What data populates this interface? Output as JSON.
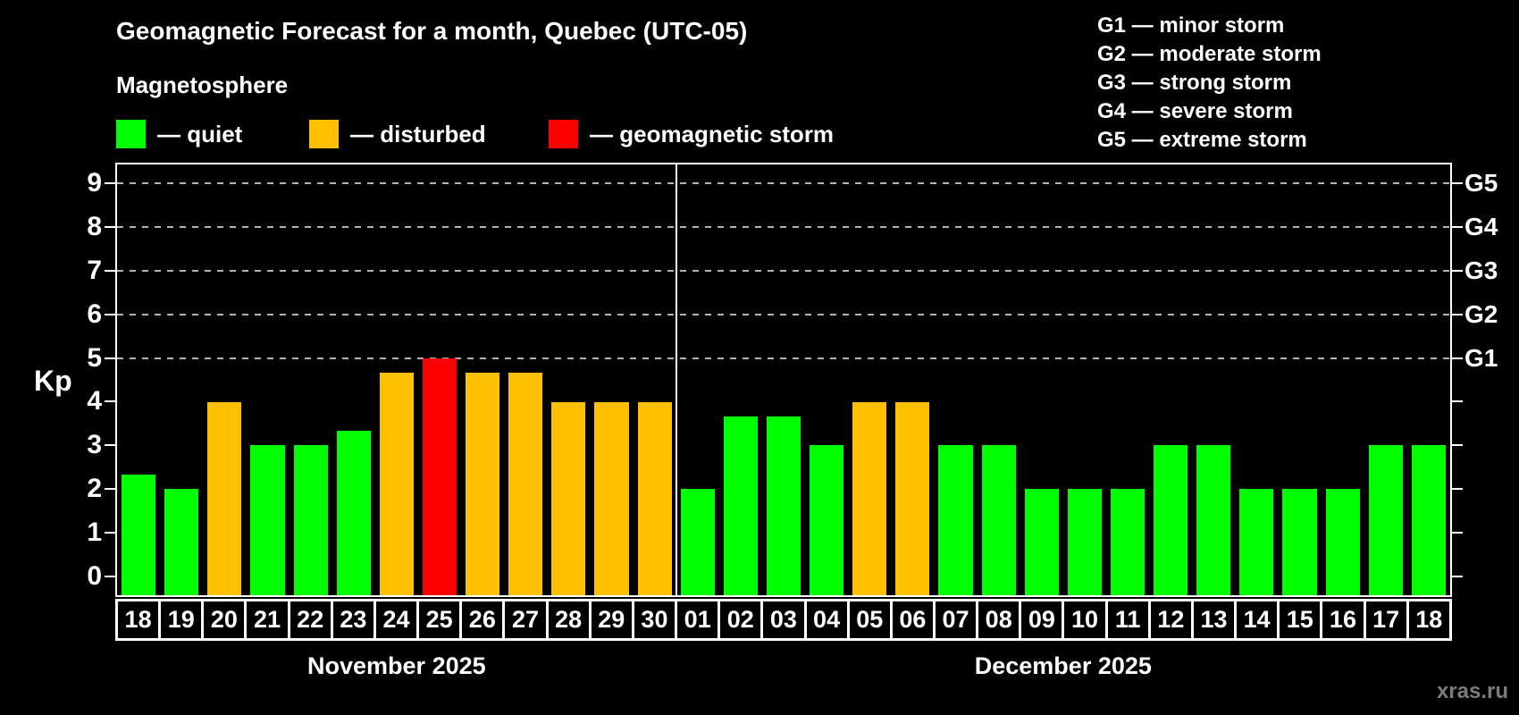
{
  "subtitle": "Magnetosphere",
  "watermark": "xras.ru",
  "legend": [
    {
      "name": "quiet",
      "label": "— quiet",
      "color": "#00ff00",
      "x": 130
    },
    {
      "name": "disturbed",
      "label": "— disturbed",
      "color": "#ffc000",
      "x": 346
    },
    {
      "name": "geomagnetic-storm",
      "label": "— geomagnetic storm",
      "color": "#ff0000",
      "x": 614
    }
  ],
  "g_scale": [
    "G1 — minor storm",
    "G2 — moderate storm",
    "G3 — strong storm",
    "G4 — severe storm",
    "G5 — extreme storm"
  ],
  "chart_data": {
    "type": "bar",
    "title": "Geomagnetic Forecast for a month, Quebec (UTC-05)",
    "ylabel": "Kp",
    "ylim": [
      -0.42,
      9.42
    ],
    "yticks": [
      0,
      1,
      2,
      3,
      4,
      5,
      6,
      7,
      8,
      9
    ],
    "grid_kp": [
      5,
      6,
      7,
      8,
      9
    ],
    "grid_on": true,
    "legend_position": "top-left",
    "right_axis_labels": [
      {
        "kp": 5,
        "text": "G1"
      },
      {
        "kp": 6,
        "text": "G2"
      },
      {
        "kp": 7,
        "text": "G3"
      },
      {
        "kp": 8,
        "text": "G4"
      },
      {
        "kp": 9,
        "text": "G5"
      }
    ],
    "status_colors": {
      "quiet": "#00ff00",
      "disturbed": "#ffc000",
      "storm": "#ff0000"
    },
    "months": [
      {
        "label": "November 2025",
        "days": [
          {
            "date": "18",
            "kp": 2.33,
            "status": "quiet"
          },
          {
            "date": "19",
            "kp": 2.0,
            "status": "quiet"
          },
          {
            "date": "20",
            "kp": 4.0,
            "status": "disturbed"
          },
          {
            "date": "21",
            "kp": 3.0,
            "status": "quiet"
          },
          {
            "date": "22",
            "kp": 3.0,
            "status": "quiet"
          },
          {
            "date": "23",
            "kp": 3.33,
            "status": "quiet"
          },
          {
            "date": "24",
            "kp": 4.67,
            "status": "disturbed"
          },
          {
            "date": "25",
            "kp": 5.0,
            "status": "storm"
          },
          {
            "date": "26",
            "kp": 4.67,
            "status": "disturbed"
          },
          {
            "date": "27",
            "kp": 4.67,
            "status": "disturbed"
          },
          {
            "date": "28",
            "kp": 4.0,
            "status": "disturbed"
          },
          {
            "date": "29",
            "kp": 4.0,
            "status": "disturbed"
          },
          {
            "date": "30",
            "kp": 4.0,
            "status": "disturbed"
          }
        ]
      },
      {
        "label": "December 2025",
        "days": [
          {
            "date": "01",
            "kp": 2.0,
            "status": "quiet"
          },
          {
            "date": "02",
            "kp": 3.67,
            "status": "quiet"
          },
          {
            "date": "03",
            "kp": 3.67,
            "status": "quiet"
          },
          {
            "date": "04",
            "kp": 3.0,
            "status": "quiet"
          },
          {
            "date": "05",
            "kp": 4.0,
            "status": "disturbed"
          },
          {
            "date": "06",
            "kp": 4.0,
            "status": "disturbed"
          },
          {
            "date": "07",
            "kp": 3.0,
            "status": "quiet"
          },
          {
            "date": "08",
            "kp": 3.0,
            "status": "quiet"
          },
          {
            "date": "09",
            "kp": 2.0,
            "status": "quiet"
          },
          {
            "date": "10",
            "kp": 2.0,
            "status": "quiet"
          },
          {
            "date": "11",
            "kp": 2.0,
            "status": "quiet"
          },
          {
            "date": "12",
            "kp": 3.0,
            "status": "quiet"
          },
          {
            "date": "13",
            "kp": 3.0,
            "status": "quiet"
          },
          {
            "date": "14",
            "kp": 2.0,
            "status": "quiet"
          },
          {
            "date": "15",
            "kp": 2.0,
            "status": "quiet"
          },
          {
            "date": "16",
            "kp": 2.0,
            "status": "quiet"
          },
          {
            "date": "17",
            "kp": 3.0,
            "status": "quiet"
          },
          {
            "date": "18",
            "kp": 3.0,
            "status": "quiet"
          }
        ]
      }
    ]
  }
}
